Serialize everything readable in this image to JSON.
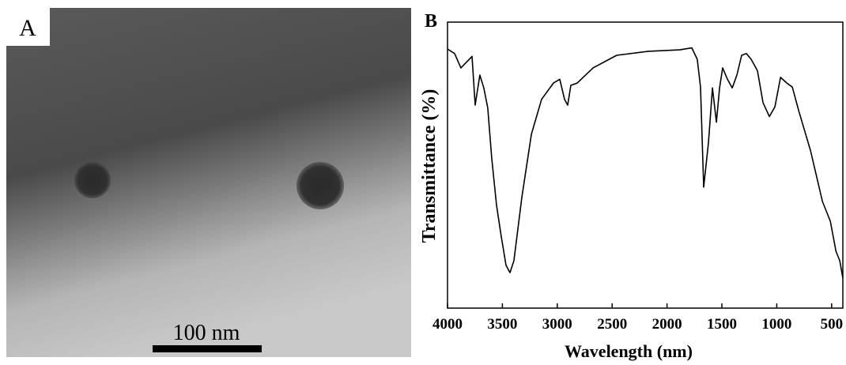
{
  "image_panel": {
    "label": "A",
    "scale_bar": "100 nm"
  },
  "chart_data": {
    "type": "line",
    "panel_label": "B",
    "x_label": "Wavelength (nm)",
    "y_label": "Transmittance (%)",
    "x": [
      4000,
      3935,
      3878,
      3827,
      3777,
      3748,
      3705,
      3669,
      3633,
      3597,
      3553,
      3510,
      3467,
      3431,
      3395,
      3323,
      3236,
      3143,
      3035,
      2977,
      2934,
      2905,
      2876,
      2818,
      2674,
      2458,
      2170,
      1882,
      1774,
      1724,
      1695,
      1666,
      1622,
      1586,
      1550,
      1521,
      1493,
      1449,
      1406,
      1363,
      1320,
      1277,
      1233,
      1176,
      1125,
      1067,
      1017,
      966,
      909,
      858,
      800,
      692,
      584,
      512,
      461,
      426,
      398
    ],
    "series": [
      {
        "color": "#000000",
        "values": [
          90.6,
          89,
          84,
          86,
          88,
          71,
          81.5,
          77,
          70,
          52.5,
          36,
          25,
          15,
          12.4,
          16.6,
          38.7,
          60.8,
          73,
          78.7,
          80,
          73,
          71,
          77.9,
          78.7,
          84,
          88.4,
          89.8,
          90.3,
          91,
          87,
          77.3,
          42.3,
          58,
          77,
          65,
          77,
          84,
          80,
          77,
          81.5,
          88.4,
          89,
          87,
          83,
          71.8,
          67,
          70.4,
          80.7,
          78.7,
          77.3,
          69,
          55,
          37.3,
          30.4,
          19.9,
          16.6,
          10.5
        ]
      }
    ],
    "xlim": [
      4000,
      398
    ],
    "ylim": [
      0,
      100
    ],
    "xticks": [
      4000,
      3500,
      3000,
      2500,
      2000,
      1500,
      1000,
      500
    ]
  }
}
